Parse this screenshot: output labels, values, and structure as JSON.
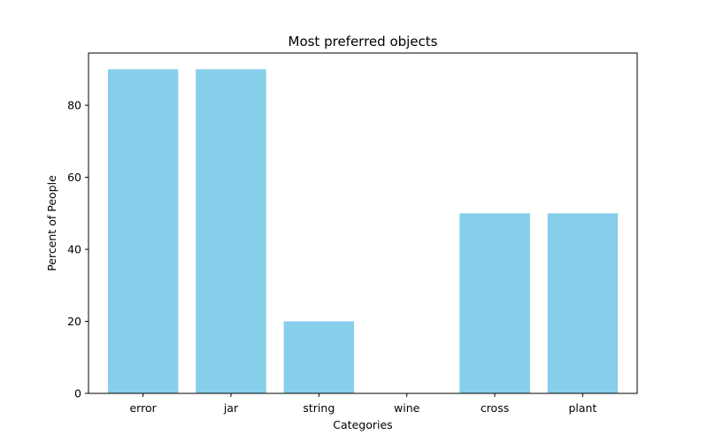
{
  "chart_data": {
    "type": "bar",
    "title": "Most preferred objects",
    "xlabel": "Categories",
    "ylabel": "Percent of People",
    "categories": [
      "error",
      "jar",
      "string",
      "wine",
      "cross",
      "plant"
    ],
    "values": [
      90,
      90,
      20,
      0,
      50,
      50
    ],
    "ylim": [
      0,
      94.5
    ],
    "yticks": [
      0,
      20,
      40,
      60,
      80
    ],
    "bar_color": "#87CEEB",
    "grid": false,
    "legend": "none"
  }
}
